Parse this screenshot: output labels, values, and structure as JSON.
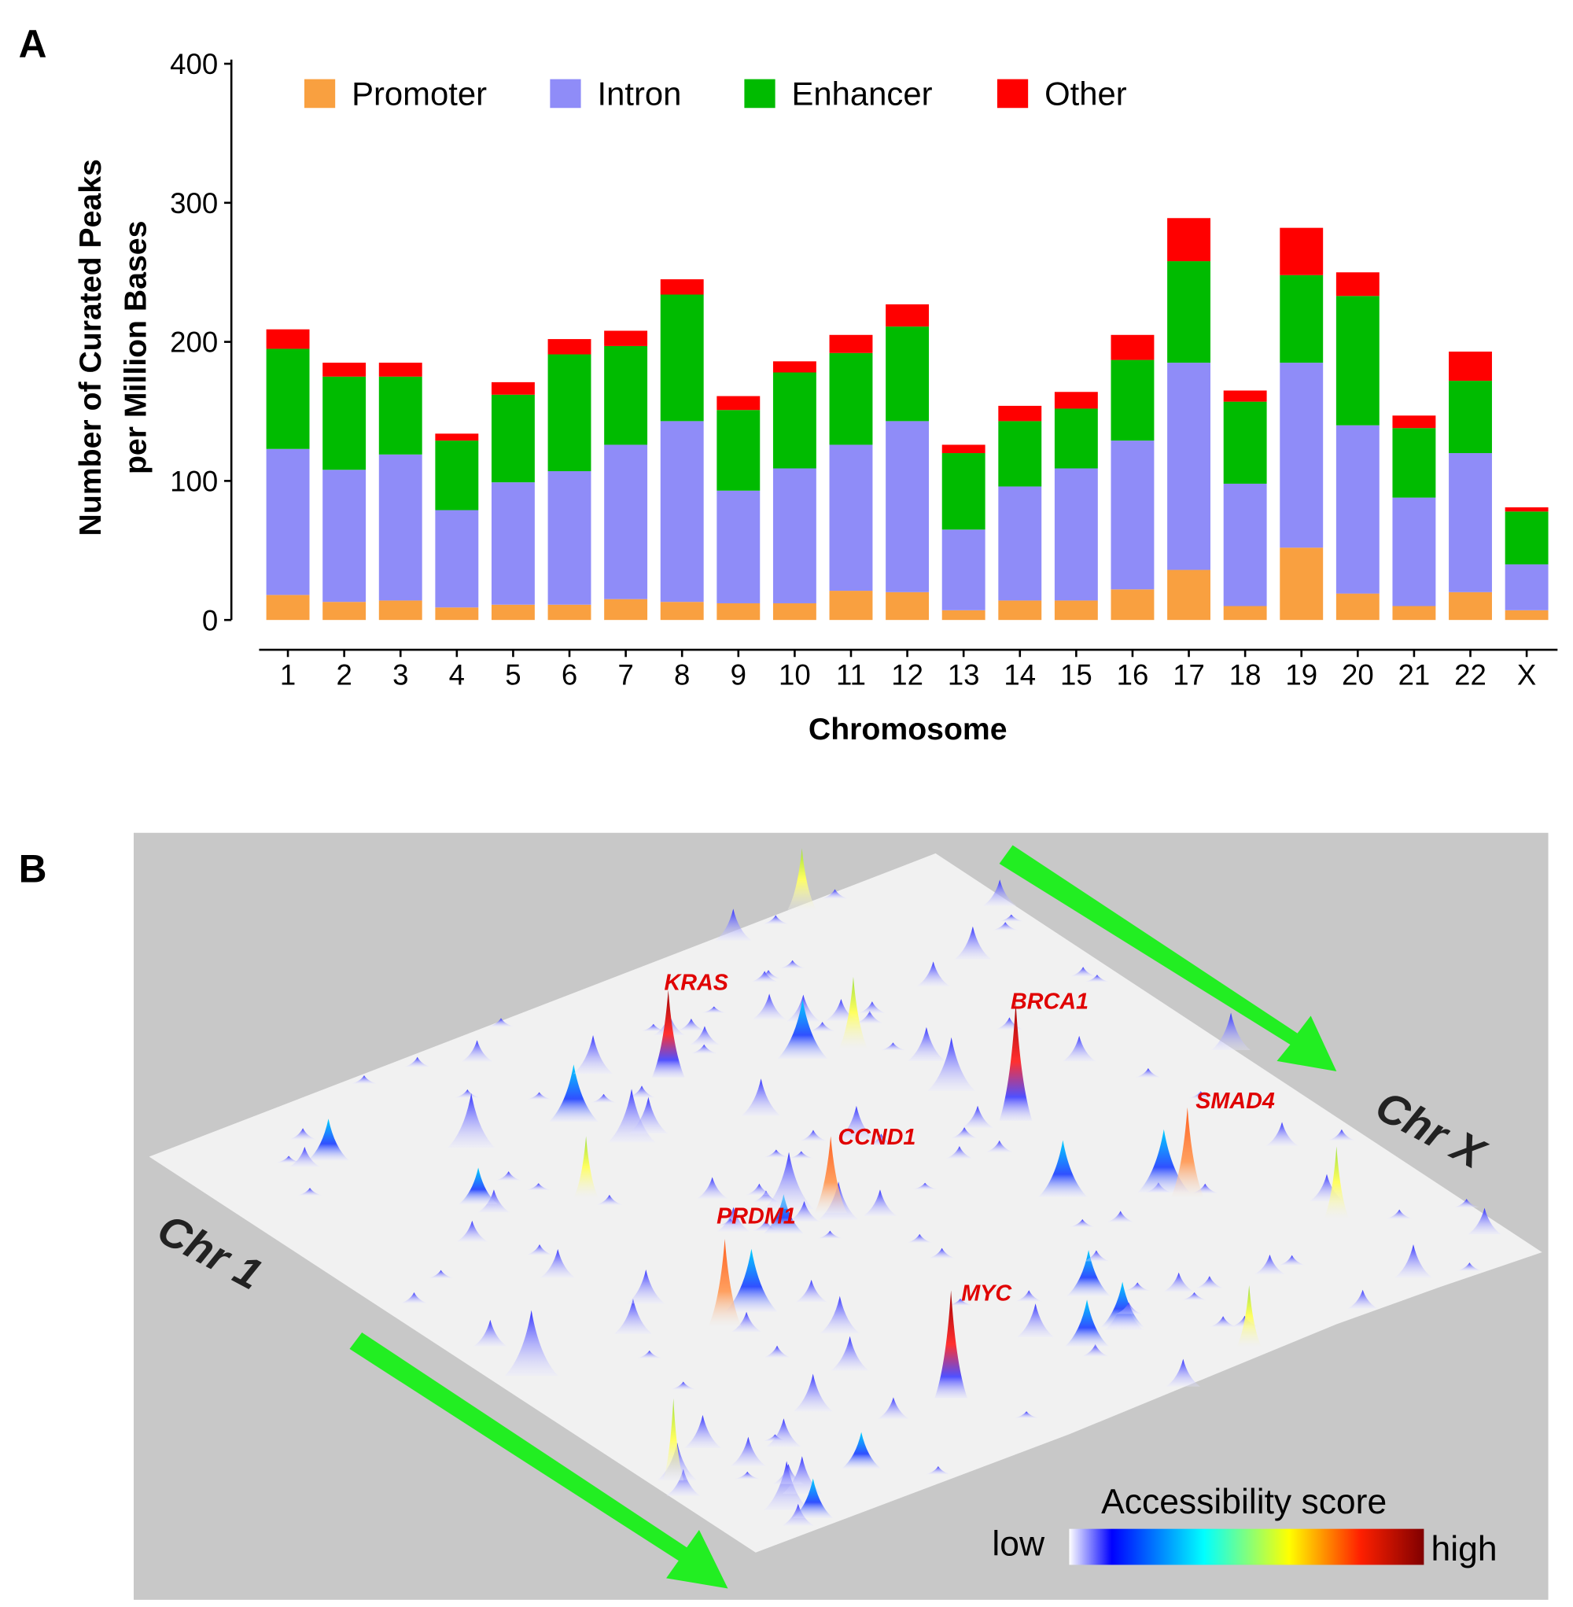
{
  "panel_a_label": "A",
  "panel_b_label": "B",
  "chart_data": [
    {
      "type": "bar",
      "stacked": true,
      "xlabel": "Chromosome",
      "ylabel_line1": "Number of Curated Peaks",
      "ylabel_line2": "per Million Bases",
      "ylim": [
        0,
        400
      ],
      "yticks": [
        "0",
        "100",
        "200",
        "300",
        "400"
      ],
      "grid": false,
      "legend_placement": "top",
      "categories": [
        "1",
        "2",
        "3",
        "4",
        "5",
        "6",
        "7",
        "8",
        "9",
        "10",
        "11",
        "12",
        "13",
        "14",
        "15",
        "16",
        "17",
        "18",
        "19",
        "20",
        "21",
        "22",
        "X"
      ],
      "series": [
        {
          "name": "Promoter",
          "color": "#F9A040",
          "values": [
            18,
            13,
            14,
            9,
            11,
            11,
            15,
            13,
            12,
            12,
            21,
            20,
            7,
            14,
            14,
            22,
            36,
            10,
            52,
            19,
            10,
            20,
            7
          ]
        },
        {
          "name": "Intron",
          "color": "#8F8CF8",
          "values": [
            105,
            95,
            105,
            70,
            88,
            96,
            111,
            130,
            81,
            97,
            105,
            123,
            58,
            82,
            95,
            107,
            149,
            88,
            133,
            121,
            78,
            100,
            33
          ]
        },
        {
          "name": "Enhancer",
          "color": "#00BB00",
          "values": [
            72,
            67,
            56,
            50,
            63,
            84,
            71,
            91,
            58,
            69,
            66,
            68,
            55,
            47,
            43,
            58,
            73,
            59,
            63,
            93,
            50,
            52,
            38
          ]
        },
        {
          "name": "Other",
          "color": "#FF0000",
          "values": [
            14,
            10,
            10,
            5,
            9,
            11,
            11,
            11,
            10,
            8,
            13,
            16,
            6,
            11,
            12,
            18,
            31,
            8,
            34,
            17,
            9,
            21,
            3
          ]
        }
      ]
    },
    {
      "type": "surface-3d",
      "axis_start": "Chr 1",
      "axis_end": "Chr X",
      "colorbar_title": "Accessibility score",
      "colorbar_low": "low",
      "colorbar_high": "high",
      "colorscale": [
        "#FFFFFF",
        "#0000FF",
        "#00FFFF",
        "#FFFF00",
        "#FF0000",
        "#800000"
      ],
      "labeled_peaks": [
        "KRAS",
        "BRCA1",
        "SMAD4",
        "CCND1",
        "PRDM1",
        "MYC"
      ],
      "label_color": "#E00000",
      "arrow_color": "#22EE22"
    }
  ]
}
